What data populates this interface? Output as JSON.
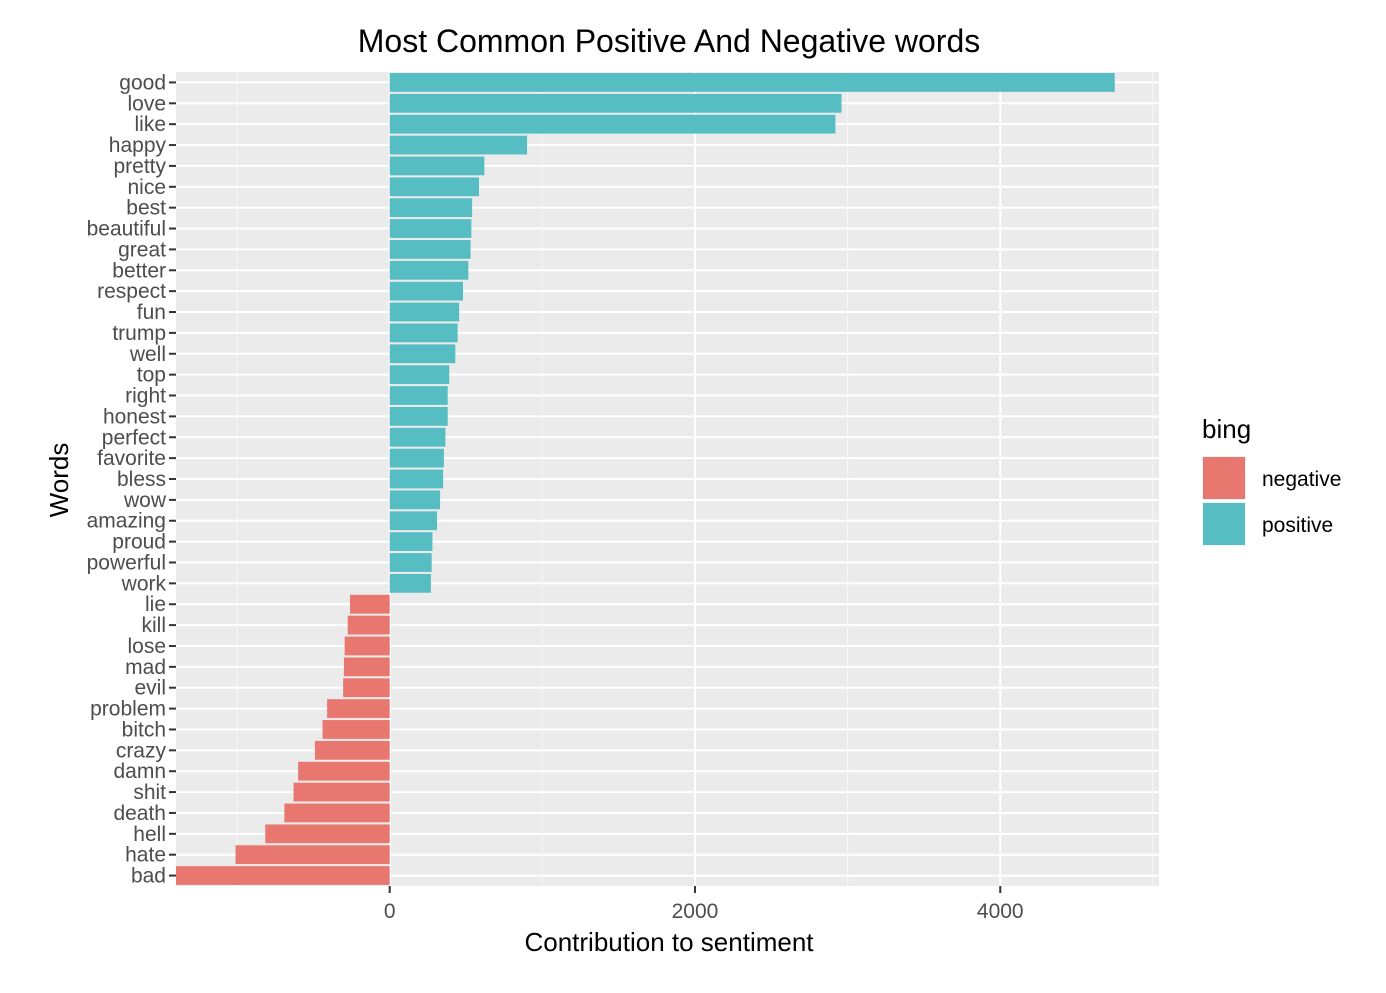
{
  "chart_data": {
    "type": "bar",
    "orientation": "horizontal",
    "title": "Most Common Positive And Negative words",
    "xlabel": "Contribution to sentiment",
    "ylabel": "Words",
    "xlim": [
      -1400,
      5040
    ],
    "xticks": [
      0,
      2000,
      4000
    ],
    "grid": true,
    "legend": {
      "title": "bing",
      "position": "right",
      "entries": [
        {
          "name": "negative",
          "color": "#E8786F"
        },
        {
          "name": "positive",
          "color": "#56BDC3"
        }
      ]
    },
    "categories": [
      "good",
      "love",
      "like",
      "happy",
      "pretty",
      "nice",
      "best",
      "beautiful",
      "great",
      "better",
      "respect",
      "fun",
      "trump",
      "well",
      "top",
      "right",
      "honest",
      "perfect",
      "favorite",
      "bless",
      "wow",
      "amazing",
      "proud",
      "powerful",
      "work",
      "lie",
      "kill",
      "lose",
      "mad",
      "evil",
      "problem",
      "bitch",
      "crazy",
      "damn",
      "shit",
      "death",
      "hell",
      "hate",
      "bad"
    ],
    "values": [
      4750,
      2960,
      2920,
      900,
      620,
      585,
      540,
      535,
      530,
      515,
      480,
      455,
      445,
      430,
      390,
      380,
      380,
      365,
      355,
      350,
      330,
      310,
      280,
      275,
      270,
      -260,
      -275,
      -295,
      -300,
      -305,
      -410,
      -440,
      -490,
      -600,
      -630,
      -690,
      -815,
      -1010,
      -1400
    ],
    "sentiment": [
      "positive",
      "positive",
      "positive",
      "positive",
      "positive",
      "positive",
      "positive",
      "positive",
      "positive",
      "positive",
      "positive",
      "positive",
      "positive",
      "positive",
      "positive",
      "positive",
      "positive",
      "positive",
      "positive",
      "positive",
      "positive",
      "positive",
      "positive",
      "positive",
      "positive",
      "negative",
      "negative",
      "negative",
      "negative",
      "negative",
      "negative",
      "negative",
      "negative",
      "negative",
      "negative",
      "negative",
      "negative",
      "negative",
      "negative"
    ]
  }
}
